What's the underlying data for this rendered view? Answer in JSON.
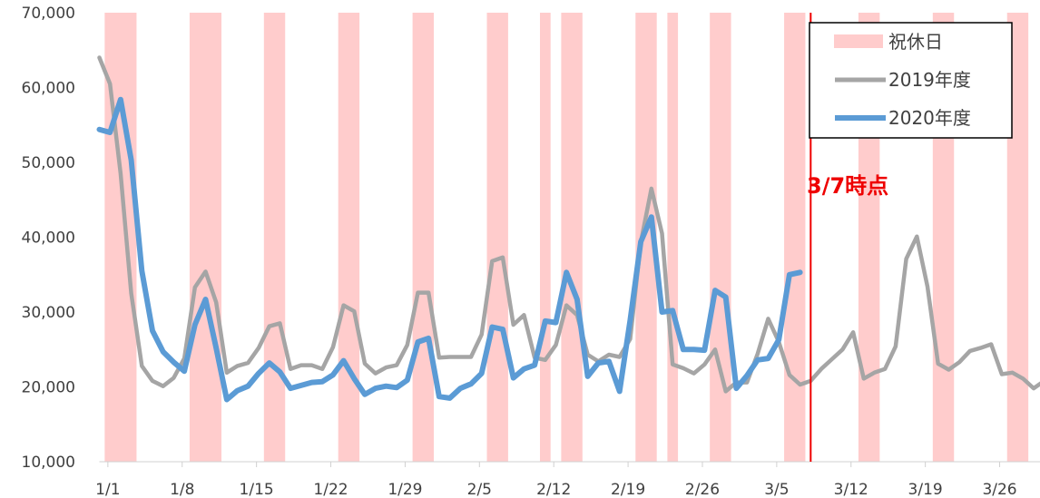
{
  "chart_data": {
    "type": "line",
    "title": "",
    "xlabel": "",
    "ylabel": "",
    "ylim": [
      10000,
      70000
    ],
    "yticks": [
      10000,
      20000,
      30000,
      40000,
      50000,
      60000,
      70000
    ],
    "ytick_labels": [
      "10,000",
      "20,000",
      "30,000",
      "40,000",
      "50,000",
      "60,000",
      "70,000"
    ],
    "x_range_days": [
      0,
      88
    ],
    "x_tick_labels": [
      "1/1",
      "1/8",
      "1/15",
      "1/22",
      "1/29",
      "2/5",
      "2/12",
      "2/19",
      "2/26",
      "3/5",
      "3/12",
      "3/19",
      "3/26"
    ],
    "x_tick_days": [
      1,
      8,
      15,
      22,
      29,
      36,
      43,
      50,
      57,
      64,
      71,
      78,
      85
    ],
    "holidays": [
      [
        0.5,
        3.5
      ],
      [
        8.5,
        11.5
      ],
      [
        15.5,
        17.5
      ],
      [
        22.5,
        24.5
      ],
      [
        29.5,
        31.5
      ],
      [
        36.5,
        38.5
      ],
      [
        41.5,
        42.5
      ],
      [
        43.5,
        45.5
      ],
      [
        50.5,
        52.5
      ],
      [
        53.5,
        54.5
      ],
      [
        57.5,
        59.5
      ],
      [
        64.5,
        66.5
      ],
      [
        71.5,
        73.5
      ],
      [
        78.5,
        80.5
      ],
      [
        85.5,
        87.5
      ]
    ],
    "marker_day": 67,
    "annotation": "3/7時点",
    "legend": {
      "position": "top-right",
      "holiday_label": "祝休日"
    },
    "colors": {
      "holiday": "#ffcccc",
      "s2019": "#a5a5a5",
      "s2020": "#5b9bd5",
      "marker": "#ee0000",
      "annotation": "#ee0000"
    },
    "grid": false,
    "series": [
      {
        "name": "2019年度",
        "values": [
          64000,
          60500,
          48500,
          32500,
          22800,
          20800,
          20100,
          21200,
          23800,
          33300,
          35400,
          31300,
          21900,
          22800,
          23200,
          25200,
          28100,
          28500,
          22400,
          22900,
          22900,
          22400,
          25300,
          30900,
          30100,
          23100,
          21800,
          22600,
          22900,
          25600,
          32600,
          32600,
          23900,
          24000,
          24000,
          24000,
          27000,
          36800,
          37300,
          28300,
          29600,
          23900,
          23600,
          25600,
          30900,
          29600,
          24300,
          23400,
          24300,
          24000,
          26400,
          39300,
          46500,
          40500,
          23000,
          22500,
          21800,
          23000,
          25000,
          19400,
          20600,
          20600,
          24400,
          29100,
          26000,
          21600,
          20300,
          20800,
          22400,
          23700,
          25000,
          27300,
          21100,
          21900,
          22400,
          25400,
          37100,
          40100,
          33400,
          23100,
          22300,
          23300,
          24800,
          25200,
          25700,
          21700,
          21900,
          21100,
          19800,
          20800
        ]
      },
      {
        "name": "2020年度",
        "values": [
          54400,
          54000,
          58400,
          50300,
          35500,
          27500,
          24700,
          23300,
          22100,
          28300,
          31700,
          25200,
          18300,
          19500,
          20100,
          21800,
          23200,
          22000,
          19800,
          20200,
          20600,
          20700,
          21600,
          23500,
          21100,
          19000,
          19800,
          20100,
          19900,
          20900,
          26000,
          26500,
          18700,
          18500,
          19800,
          20400,
          21800,
          28000,
          27700,
          21200,
          22400,
          22900,
          28800,
          28600,
          35300,
          31700,
          21400,
          23200,
          23400,
          19400,
          28900,
          39400,
          42700,
          30000,
          30200,
          25000,
          25000,
          24900,
          32900,
          32000,
          19800,
          21500,
          23600,
          23800,
          26300,
          35000,
          35300
        ]
      }
    ]
  }
}
